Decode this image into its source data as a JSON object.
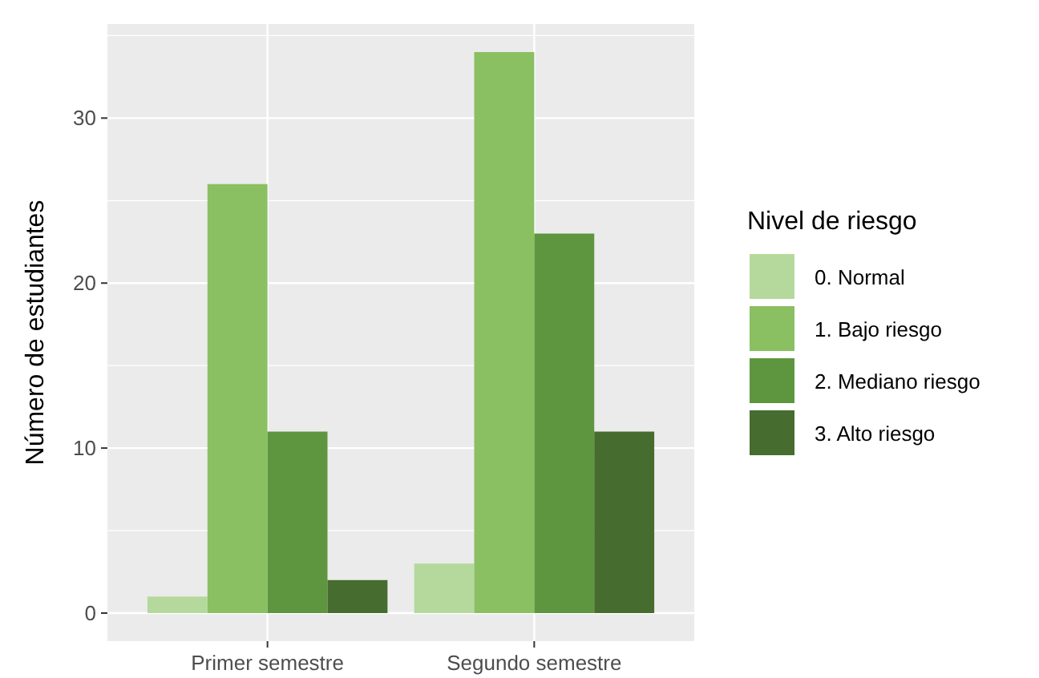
{
  "chart_data": {
    "type": "bar",
    "ylabel": "Número de estudiantes",
    "legend_title": "Nivel de riesgo",
    "categories": [
      "Primer semestre",
      "Segundo semestre"
    ],
    "series": [
      {
        "name": "0. Normal",
        "color": "#b5d99c",
        "values": [
          1,
          3
        ]
      },
      {
        "name": "1. Bajo riesgo",
        "color": "#8abf62",
        "values": [
          26,
          34
        ]
      },
      {
        "name": "2. Mediano riesgo",
        "color": "#5e963f",
        "values": [
          11,
          23
        ]
      },
      {
        "name": "3. Alto riesgo",
        "color": "#466d2f",
        "values": [
          2,
          11
        ]
      }
    ],
    "ylim": [
      -1.7,
      35.7
    ],
    "yticks": [
      0,
      10,
      20,
      30
    ],
    "grid": true,
    "legend": "right"
  }
}
